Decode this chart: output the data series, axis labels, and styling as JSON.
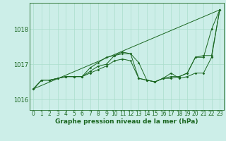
{
  "title": "Graphe pression niveau de la mer (hPa)",
  "bg_color": "#cceee8",
  "grid_color": "#aaddcc",
  "line_color": "#1a6620",
  "xlim": [
    -0.5,
    23.5
  ],
  "ylim": [
    1015.7,
    1018.75
  ],
  "yticks": [
    1016,
    1017,
    1018
  ],
  "xticks": [
    0,
    1,
    2,
    3,
    4,
    5,
    6,
    7,
    8,
    9,
    10,
    11,
    12,
    13,
    14,
    15,
    16,
    17,
    18,
    19,
    20,
    21,
    22,
    23
  ],
  "line1_x": [
    0,
    1,
    2,
    3,
    4,
    5,
    6,
    7,
    8,
    9,
    10,
    11,
    12,
    13,
    14,
    15,
    16,
    17,
    18,
    19,
    20,
    21,
    22,
    23
  ],
  "line1_y": [
    1016.3,
    1016.55,
    1016.55,
    1016.6,
    1016.65,
    1016.65,
    1016.65,
    1016.9,
    1017.05,
    1017.2,
    1017.25,
    1017.35,
    1017.3,
    1016.6,
    1016.55,
    1016.5,
    1016.6,
    1016.6,
    1016.65,
    1016.75,
    1017.2,
    1017.2,
    1018.0,
    1018.55
  ],
  "line2_x": [
    0,
    1,
    2,
    3,
    4,
    5,
    6,
    7,
    8,
    9,
    10,
    11,
    12,
    13,
    14,
    15,
    16,
    17,
    18,
    19,
    20,
    21,
    22,
    23
  ],
  "line2_y": [
    1016.3,
    1016.55,
    1016.55,
    1016.6,
    1016.65,
    1016.65,
    1016.65,
    1016.8,
    1016.95,
    1017.0,
    1017.25,
    1017.3,
    1017.3,
    1017.05,
    1016.55,
    1016.5,
    1016.6,
    1016.65,
    1016.65,
    1016.75,
    1017.2,
    1017.25,
    1017.25,
    1018.55
  ],
  "line3_x": [
    0,
    1,
    2,
    3,
    4,
    5,
    6,
    7,
    8,
    9,
    10,
    11,
    12,
    13,
    14,
    15,
    16,
    17,
    18,
    19,
    20,
    21,
    22,
    23
  ],
  "line3_y": [
    1016.3,
    1016.55,
    1016.55,
    1016.6,
    1016.65,
    1016.65,
    1016.65,
    1016.75,
    1016.85,
    1016.95,
    1017.1,
    1017.15,
    1017.1,
    1016.6,
    1016.55,
    1016.5,
    1016.6,
    1016.75,
    1016.6,
    1016.65,
    1016.75,
    1016.75,
    1017.2,
    1018.55
  ],
  "line4_x": [
    0,
    23
  ],
  "line4_y": [
    1016.3,
    1018.55
  ],
  "title_fontsize": 6.5,
  "tick_fontsize": 5.5,
  "ytick_fontsize": 6.0
}
